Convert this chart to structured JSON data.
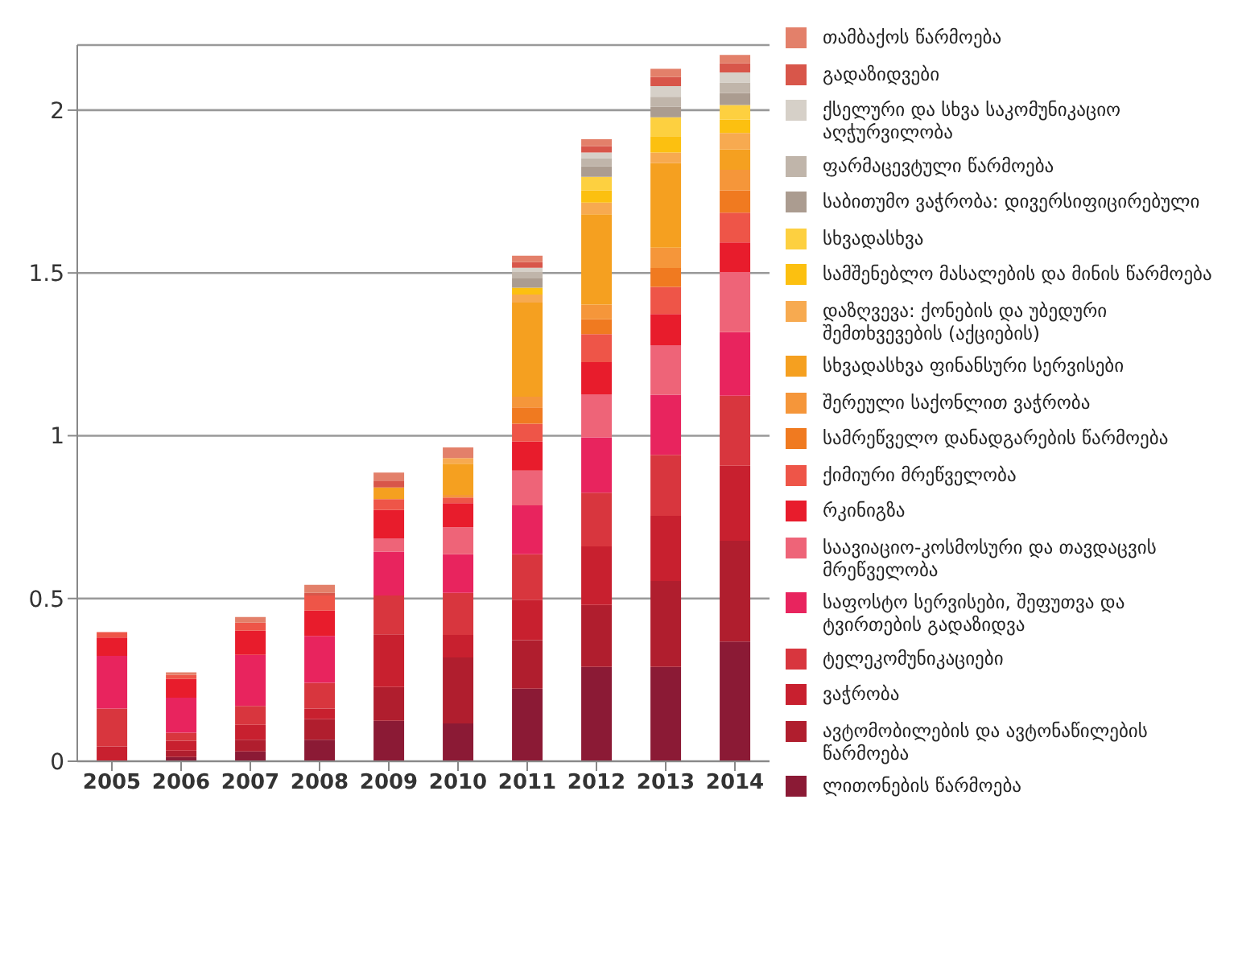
{
  "chart_data": {
    "type": "bar",
    "stacked": true,
    "categories": [
      "2005",
      "2006",
      "2007",
      "2008",
      "2009",
      "2010",
      "2011",
      "2012",
      "2013",
      "2014"
    ],
    "ylim": [
      0,
      2.2
    ],
    "yticks": [
      0,
      0.5,
      1,
      1.5,
      2
    ],
    "grid": "y",
    "legend": "right",
    "series": [
      {
        "name": "ლითონების წარმოება",
        "color": "#8b1a35",
        "values": [
          0,
          0.013,
          0.03,
          0.066,
          0.124,
          0.116,
          0.223,
          0.29,
          0.29,
          0.368
        ]
      },
      {
        "name": "ავტომობილების და ავტონაწილების წარმოება",
        "color": "#b01e2e",
        "values": [
          0,
          0.02,
          0.036,
          0.063,
          0.104,
          0.203,
          0.149,
          0.19,
          0.264,
          0.309
        ]
      },
      {
        "name": "ვაჭრობა",
        "color": "#c8202f",
        "values": [
          0.046,
          0.03,
          0.046,
          0.033,
          0.162,
          0.069,
          0.124,
          0.18,
          0.2,
          0.231
        ]
      },
      {
        "name": "ტელეკომუნიკაციები",
        "color": "#d8363e",
        "values": [
          0.116,
          0.025,
          0.058,
          0.079,
          0.119,
          0.129,
          0.14,
          0.165,
          0.187,
          0.215
        ]
      },
      {
        "name": "საფოსტო სერვისები, შეფუთვა და ტვირთების გადაზიდვა",
        "color": "#e8245e",
        "values": [
          0.162,
          0.107,
          0.157,
          0.144,
          0.135,
          0.119,
          0.15,
          0.17,
          0.185,
          0.195
        ]
      },
      {
        "name": "საავიაციო-კოსმოსური და თავდაცვის მრეწველობა",
        "color": "#ee6478",
        "values": [
          0,
          0,
          0,
          0,
          0.041,
          0.083,
          0.107,
          0.132,
          0.152,
          0.185
        ]
      },
      {
        "name": "რკინიგზა",
        "color": "#e81c2c",
        "values": [
          0.056,
          0.058,
          0.074,
          0.078,
          0.087,
          0.074,
          0.089,
          0.099,
          0.096,
          0.091
        ]
      },
      {
        "name": "ქიმიური მრეწველობა",
        "color": "#ee5548",
        "values": [
          0.017,
          0.012,
          0.025,
          0.046,
          0.033,
          0.017,
          0.055,
          0.086,
          0.083,
          0.091
        ]
      },
      {
        "name": "სამრეწველო დანადგარების წარმოება",
        "color": "#f07a20",
        "values": [
          0,
          0,
          0,
          0,
          0,
          0,
          0.05,
          0.046,
          0.058,
          0.069
        ]
      },
      {
        "name": "შერეული საქონლით ვაჭრობა",
        "color": "#f5963a",
        "values": [
          0,
          0,
          0,
          0,
          0,
          0.008,
          0.033,
          0.045,
          0.063,
          0.063
        ]
      },
      {
        "name": "სხვადასხვა ფინანსური სერვისები",
        "color": "#f5a020",
        "values": [
          0,
          0,
          0,
          0,
          0.036,
          0.096,
          0.289,
          0.277,
          0.259,
          0.063
        ]
      },
      {
        "name": "დაზღვევა: ქონების და უბედური შემთხვევების (აქციების)",
        "color": "#f7aa50",
        "values": [
          0,
          0,
          0,
          0,
          0,
          0.017,
          0.025,
          0.036,
          0.033,
          0.05
        ]
      },
      {
        "name": "სამშენებლო მასალების და მინის წარმოება",
        "color": "#fcc010",
        "values": [
          0,
          0,
          0,
          0,
          0,
          0,
          0.021,
          0.038,
          0.05,
          0.041
        ]
      },
      {
        "name": "სხვადასხვა",
        "color": "#fdd040",
        "values": [
          0,
          0,
          0,
          0,
          0,
          0,
          0,
          0.041,
          0.058,
          0.045
        ]
      },
      {
        "name": "საბითუმო ვაჭრობა: დივერსიფიცირებული",
        "color": "#ab9c90",
        "values": [
          0,
          0,
          0,
          0,
          0,
          0,
          0.028,
          0.033,
          0.033,
          0.036
        ]
      },
      {
        "name": "ფარმაცევტული წარმოება",
        "color": "#c0b5aa",
        "values": [
          0,
          0,
          0,
          0,
          0,
          0,
          0.02,
          0.025,
          0.03,
          0.033
        ]
      },
      {
        "name": "ქსელური და სხვა საკომუნიკაციო აღჭურვილობა",
        "color": "#d6d0c8",
        "values": [
          0,
          0,
          0,
          0,
          0,
          0,
          0.013,
          0.017,
          0.033,
          0.031
        ]
      },
      {
        "name": "გადაზიდვები",
        "color": "#d8564a",
        "values": [
          0,
          0,
          0,
          0.008,
          0.021,
          0,
          0.017,
          0.02,
          0.028,
          0.028
        ]
      },
      {
        "name": "თამბაქოს წარმოება",
        "color": "#e3806a",
        "values": [
          0,
          0.008,
          0.017,
          0.025,
          0.025,
          0.033,
          0.02,
          0.021,
          0.025,
          0.026
        ]
      }
    ]
  }
}
